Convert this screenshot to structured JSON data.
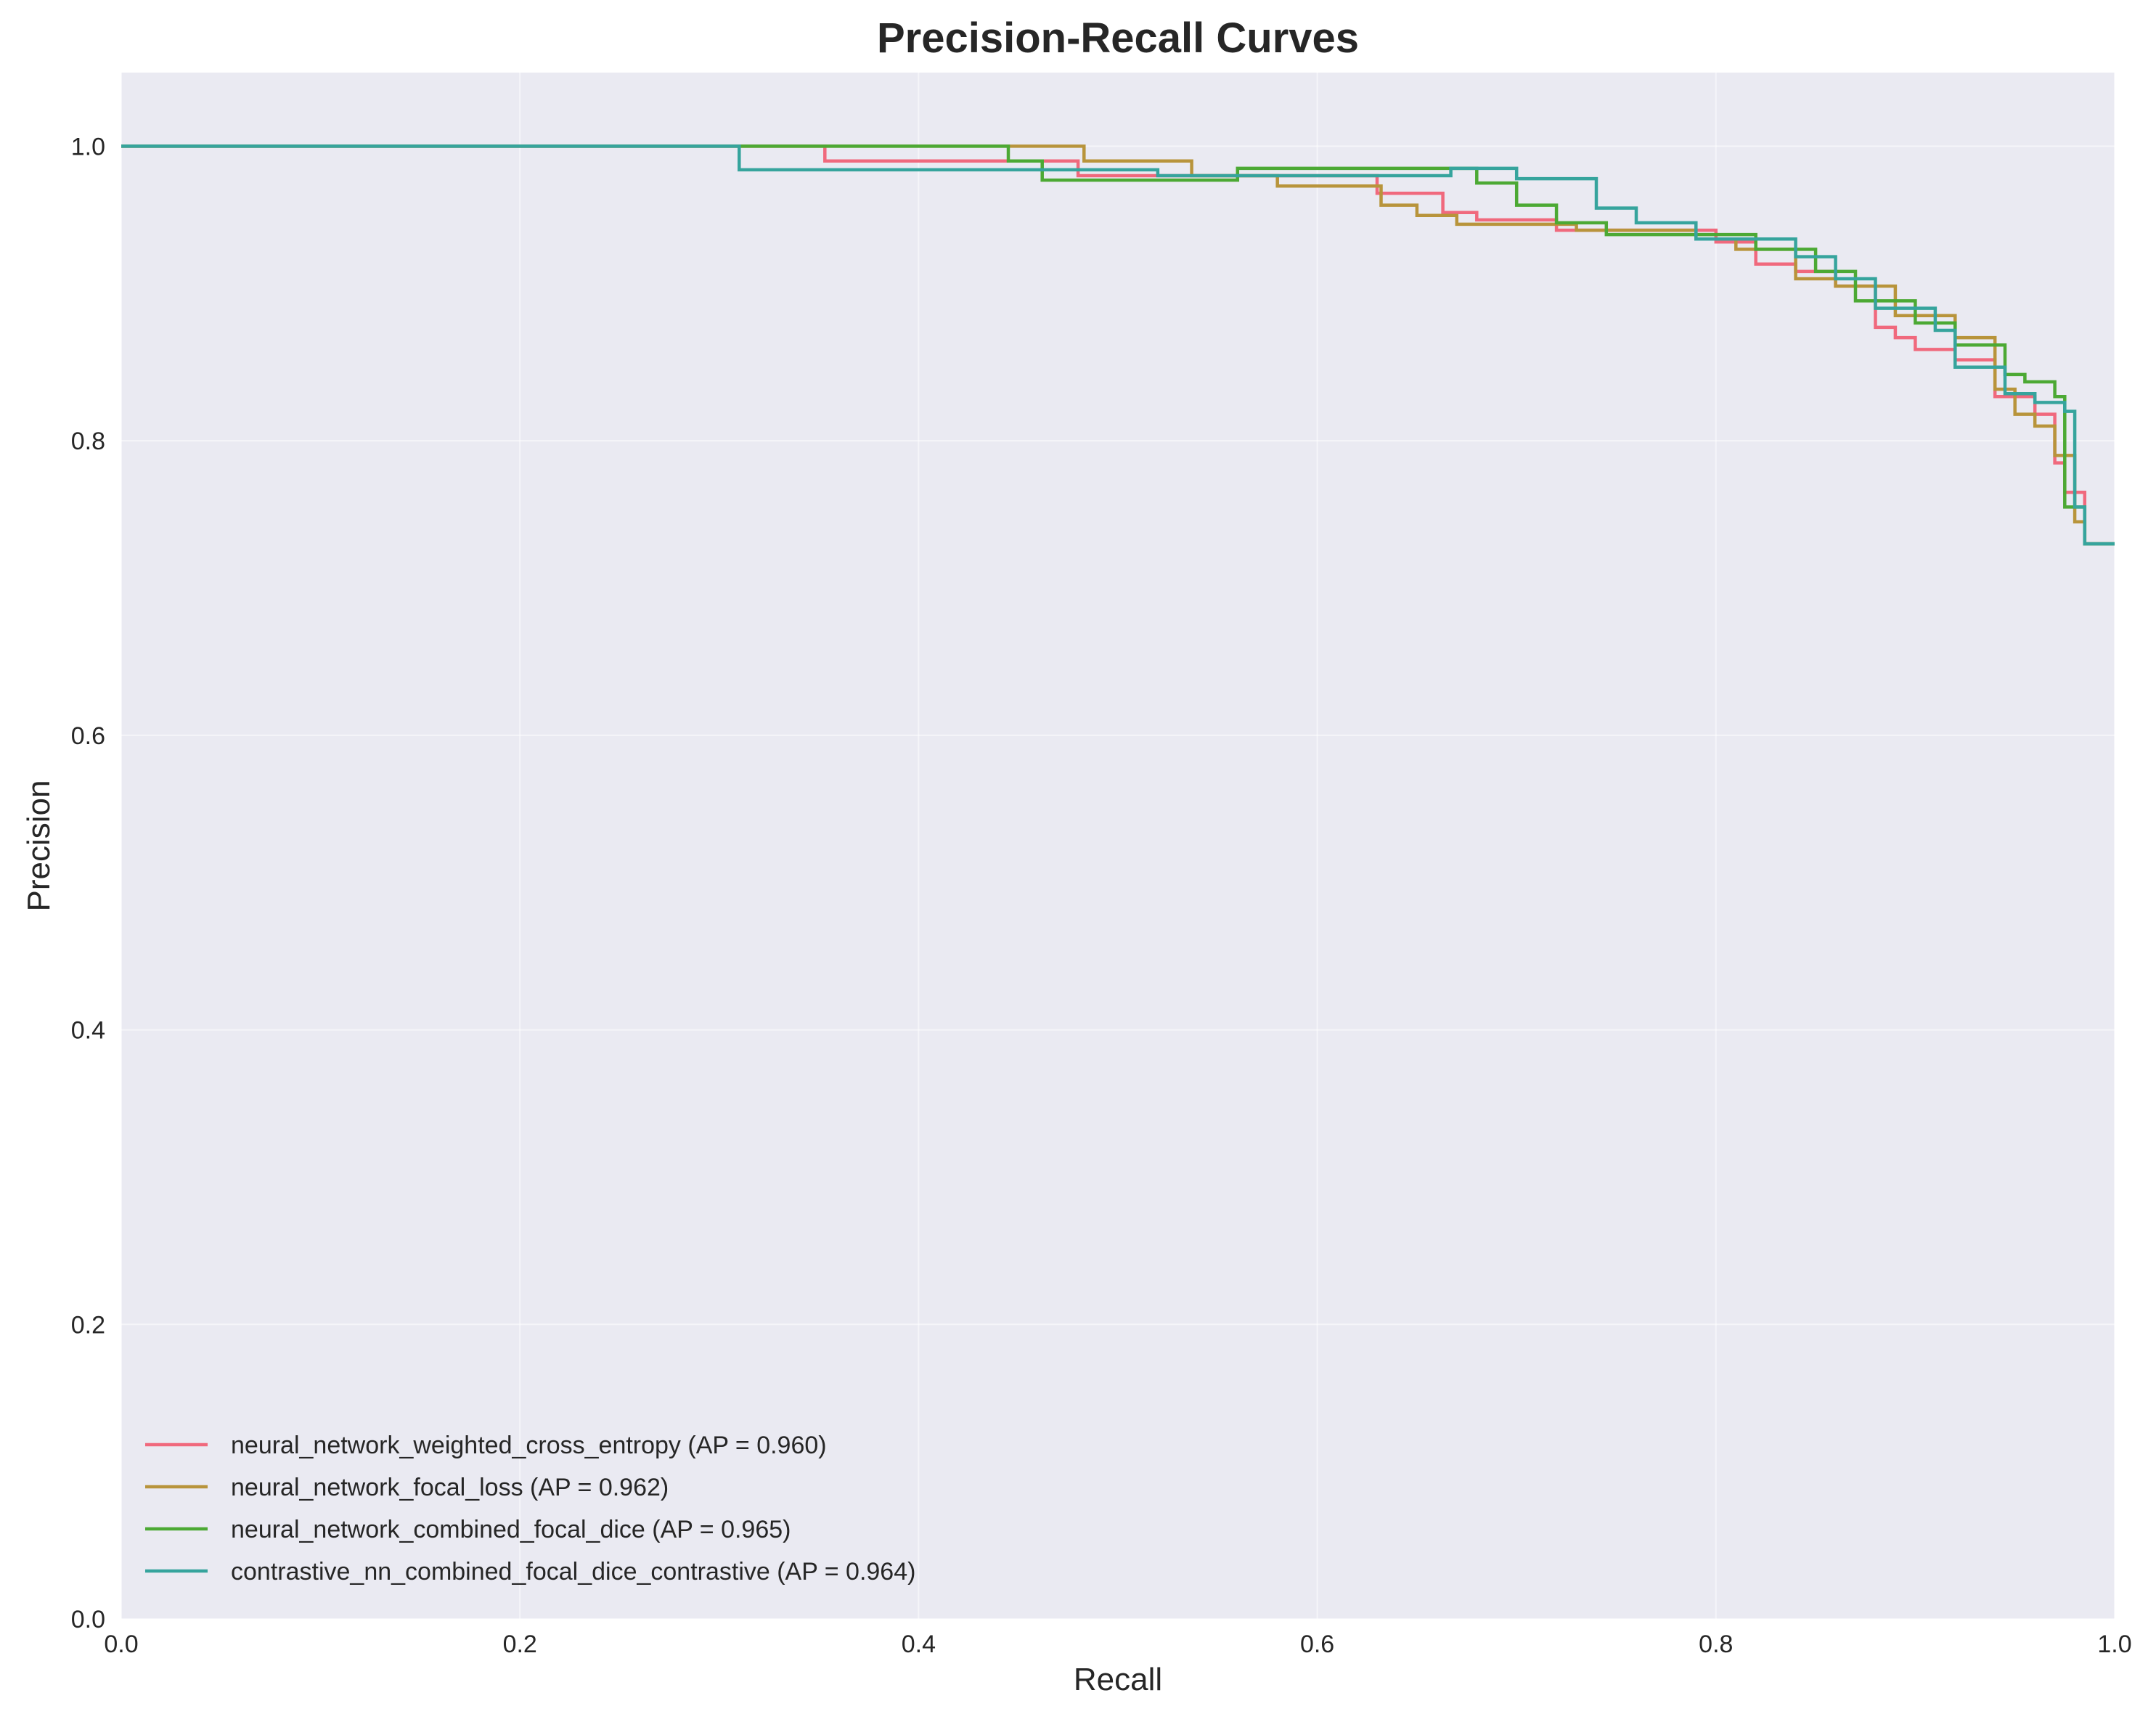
{
  "chart_data": {
    "type": "line",
    "title": "Precision-Recall Curves",
    "xlabel": "Recall",
    "ylabel": "Precision",
    "xlim": [
      0.0,
      1.0
    ],
    "ylim": [
      0.0,
      1.05
    ],
    "xticks": [
      0.0,
      0.2,
      0.4,
      0.6,
      0.8,
      1.0
    ],
    "xtick_labels": [
      "0.0",
      "0.2",
      "0.4",
      "0.6",
      "0.8",
      "1.0"
    ],
    "yticks": [
      0.0,
      0.2,
      0.4,
      0.6,
      0.8,
      1.0
    ],
    "ytick_labels": [
      "0.0",
      "0.2",
      "0.4",
      "0.6",
      "0.8",
      "1.0"
    ],
    "grid": true,
    "legend_position": "lower-left",
    "background_color": "#eaeaf2",
    "step": true,
    "series": [
      {
        "name": "neural_network_weighted_cross_entropy (AP = 0.960)",
        "color": "#f0697d",
        "x": [
          0.0,
          0.353,
          0.353,
          0.48,
          0.48,
          0.63,
          0.63,
          0.663,
          0.663,
          0.68,
          0.68,
          0.72,
          0.72,
          0.8,
          0.8,
          0.82,
          0.82,
          0.84,
          0.84,
          0.86,
          0.86,
          0.88,
          0.88,
          0.89,
          0.89,
          0.9,
          0.9,
          0.92,
          0.92,
          0.94,
          0.94,
          0.96,
          0.96,
          0.97,
          0.97,
          0.975,
          0.975,
          0.985,
          0.985,
          1.0
        ],
        "y": [
          1.0,
          1.0,
          0.99,
          0.99,
          0.98,
          0.98,
          0.968,
          0.968,
          0.955,
          0.955,
          0.95,
          0.95,
          0.943,
          0.943,
          0.935,
          0.935,
          0.92,
          0.92,
          0.915,
          0.915,
          0.905,
          0.905,
          0.877,
          0.877,
          0.87,
          0.87,
          0.862,
          0.862,
          0.855,
          0.855,
          0.83,
          0.83,
          0.818,
          0.818,
          0.785,
          0.785,
          0.765,
          0.765,
          0.73,
          0.73
        ]
      },
      {
        "name": "neural_network_focal_loss (AP = 0.962)",
        "color": "#b8943b",
        "x": [
          0.0,
          0.483,
          0.483,
          0.537,
          0.537,
          0.58,
          0.58,
          0.632,
          0.632,
          0.65,
          0.65,
          0.67,
          0.67,
          0.73,
          0.73,
          0.79,
          0.79,
          0.81,
          0.81,
          0.84,
          0.84,
          0.86,
          0.86,
          0.89,
          0.89,
          0.92,
          0.92,
          0.94,
          0.94,
          0.95,
          0.95,
          0.96,
          0.96,
          0.97,
          0.97,
          0.98,
          0.98,
          0.985,
          0.985,
          1.0
        ],
        "y": [
          1.0,
          1.0,
          0.99,
          0.99,
          0.98,
          0.98,
          0.973,
          0.973,
          0.96,
          0.96,
          0.953,
          0.953,
          0.947,
          0.947,
          0.943,
          0.943,
          0.937,
          0.937,
          0.93,
          0.93,
          0.91,
          0.91,
          0.905,
          0.905,
          0.885,
          0.885,
          0.87,
          0.87,
          0.835,
          0.835,
          0.818,
          0.818,
          0.81,
          0.81,
          0.79,
          0.79,
          0.745,
          0.745,
          0.73,
          0.73
        ]
      },
      {
        "name": "neural_network_combined_focal_dice (AP = 0.965)",
        "color": "#4ca934",
        "x": [
          0.0,
          0.445,
          0.445,
          0.462,
          0.462,
          0.56,
          0.56,
          0.68,
          0.68,
          0.7,
          0.7,
          0.72,
          0.72,
          0.745,
          0.745,
          0.82,
          0.82,
          0.85,
          0.85,
          0.87,
          0.87,
          0.9,
          0.9,
          0.92,
          0.92,
          0.945,
          0.945,
          0.955,
          0.955,
          0.97,
          0.97,
          0.975,
          0.975,
          0.985,
          0.985,
          1.0
        ],
        "y": [
          1.0,
          1.0,
          0.99,
          0.99,
          0.977,
          0.977,
          0.985,
          0.985,
          0.975,
          0.975,
          0.96,
          0.96,
          0.948,
          0.948,
          0.94,
          0.94,
          0.93,
          0.93,
          0.915,
          0.915,
          0.895,
          0.895,
          0.88,
          0.88,
          0.865,
          0.865,
          0.845,
          0.845,
          0.84,
          0.84,
          0.83,
          0.83,
          0.755,
          0.755,
          0.73,
          0.73
        ]
      },
      {
        "name": "contrastive_nn_combined_focal_dice_contrastive (AP = 0.964)",
        "color": "#36a49d",
        "x": [
          0.0,
          0.31,
          0.31,
          0.52,
          0.52,
          0.667,
          0.667,
          0.7,
          0.7,
          0.74,
          0.74,
          0.76,
          0.76,
          0.79,
          0.79,
          0.84,
          0.84,
          0.86,
          0.86,
          0.88,
          0.88,
          0.91,
          0.91,
          0.92,
          0.92,
          0.945,
          0.945,
          0.96,
          0.96,
          0.975,
          0.975,
          0.98,
          0.98,
          0.985,
          0.985,
          1.0
        ],
        "y": [
          1.0,
          1.0,
          0.984,
          0.984,
          0.98,
          0.98,
          0.985,
          0.985,
          0.978,
          0.978,
          0.958,
          0.958,
          0.948,
          0.948,
          0.937,
          0.937,
          0.925,
          0.925,
          0.91,
          0.91,
          0.89,
          0.89,
          0.875,
          0.875,
          0.85,
          0.85,
          0.832,
          0.832,
          0.826,
          0.826,
          0.82,
          0.82,
          0.755,
          0.755,
          0.73,
          0.73
        ]
      }
    ]
  }
}
